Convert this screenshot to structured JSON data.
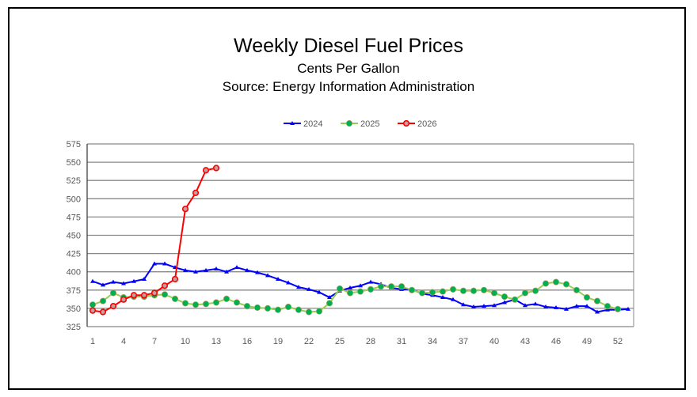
{
  "chart_data": {
    "type": "line",
    "title": "Weekly Diesel Fuel Prices",
    "subtitle": [
      "Cents Per Gallon",
      "Source: Energy Information Administration"
    ],
    "xlabel": "",
    "ylabel": "",
    "ylim": [
      325,
      575
    ],
    "yticks": [
      325,
      350,
      375,
      400,
      425,
      450,
      475,
      500,
      525,
      550,
      575
    ],
    "xlim": [
      1,
      53
    ],
    "xticks": [
      1,
      4,
      7,
      10,
      13,
      16,
      19,
      22,
      25,
      28,
      31,
      34,
      37,
      40,
      43,
      46,
      49,
      52
    ],
    "grid": true,
    "legend": "top-center",
    "series": [
      {
        "name": "2024",
        "color": "#0000ff",
        "marker": "triangle",
        "values": [
          387,
          382,
          386,
          384,
          387,
          390,
          411,
          411,
          406,
          402,
          400,
          402,
          404,
          400,
          406,
          402,
          399,
          395,
          390,
          385,
          379,
          376,
          372,
          365,
          374,
          378,
          381,
          386,
          383,
          378,
          376,
          376,
          370,
          368,
          365,
          362,
          355,
          352,
          353,
          354,
          358,
          362,
          354,
          356,
          352,
          351,
          349,
          353,
          353,
          345,
          348,
          348,
          349
        ]
      },
      {
        "name": "2025",
        "color": "#92d050",
        "marker_color": "#00b050",
        "marker": "circle",
        "values": [
          355,
          360,
          371,
          365,
          366,
          366,
          368,
          369,
          363,
          357,
          355,
          356,
          358,
          363,
          358,
          353,
          351,
          350,
          348,
          352,
          348,
          345,
          346,
          357,
          377,
          371,
          373,
          376,
          380,
          380,
          380,
          375,
          371,
          372,
          373,
          376,
          374,
          374,
          375,
          371,
          366,
          362,
          371,
          374,
          384,
          386,
          383,
          375,
          365,
          360,
          353,
          349
        ]
      },
      {
        "name": "2026",
        "color": "#ff0000",
        "marker": "circle-open",
        "values": [
          347,
          345,
          353,
          362,
          368,
          368,
          371,
          381,
          390,
          486,
          508,
          539,
          542
        ]
      }
    ]
  }
}
